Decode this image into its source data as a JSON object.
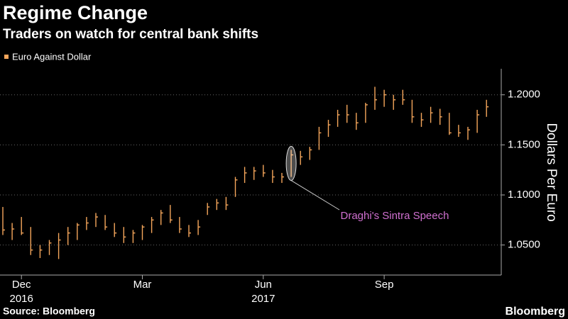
{
  "chart_data": {
    "type": "ohlc",
    "title": "Regime Change",
    "subtitle": "Traders on watch for central bank shifts",
    "legend": "Euro Against Dollar",
    "color": "#f5a65b",
    "y_axis_label": "Dollars Per Euro",
    "source": "Source: Bloomberg",
    "brand": "Bloomberg",
    "annotation": "Draghi's Sintra Speech",
    "categories": [
      null,
      null,
      "Dec",
      null,
      null,
      null,
      null,
      null,
      null,
      null,
      null,
      null,
      null,
      null,
      null,
      "Mar",
      null,
      null,
      null,
      null,
      null,
      null,
      null,
      null,
      null,
      null,
      null,
      null,
      "Jun",
      null,
      null,
      null,
      null,
      null,
      null,
      null,
      null,
      null,
      null,
      null,
      null,
      "Sep",
      null,
      null,
      null,
      null,
      null,
      null,
      null,
      null,
      null,
      null,
      null
    ],
    "category_years": [
      null,
      null,
      "2016",
      null,
      null,
      null,
      null,
      null,
      null,
      null,
      null,
      null,
      null,
      null,
      null,
      null,
      null,
      null,
      null,
      null,
      null,
      null,
      null,
      null,
      null,
      null,
      null,
      null,
      "2017",
      null,
      null,
      null,
      null,
      null,
      null,
      null,
      null,
      null,
      null,
      null,
      null,
      null,
      null,
      null,
      null,
      null,
      null,
      null,
      null,
      null,
      null,
      null,
      null
    ],
    "high": [
      1.088,
      1.072,
      1.078,
      1.068,
      1.05,
      1.055,
      1.062,
      1.068,
      1.072,
      1.078,
      1.082,
      1.08,
      1.072,
      1.068,
      1.065,
      1.07,
      1.078,
      1.085,
      1.09,
      1.078,
      1.07,
      1.075,
      1.092,
      1.096,
      1.098,
      1.118,
      1.128,
      1.128,
      1.13,
      1.125,
      1.122,
      1.145,
      1.144,
      1.148,
      1.168,
      1.175,
      1.185,
      1.19,
      1.182,
      1.192,
      1.208,
      1.205,
      1.2,
      1.205,
      1.195,
      1.182,
      1.188,
      1.186,
      1.182,
      1.17,
      1.168,
      1.185,
      1.195
    ],
    "low": [
      1.06,
      1.055,
      1.06,
      1.04,
      1.037,
      1.04,
      1.036,
      1.05,
      1.055,
      1.065,
      1.068,
      1.065,
      1.058,
      1.052,
      1.052,
      1.055,
      1.062,
      1.07,
      1.072,
      1.062,
      1.058,
      1.06,
      1.08,
      1.085,
      1.085,
      1.098,
      1.112,
      1.115,
      1.118,
      1.112,
      1.112,
      1.118,
      1.13,
      1.135,
      1.145,
      1.158,
      1.168,
      1.172,
      1.165,
      1.172,
      1.185,
      1.188,
      1.185,
      1.19,
      1.172,
      1.168,
      1.172,
      1.17,
      1.16,
      1.158,
      1.155,
      1.162,
      1.178
    ],
    "close": [
      1.065,
      1.066,
      1.062,
      1.045,
      1.045,
      1.052,
      1.055,
      1.062,
      1.07,
      1.072,
      1.078,
      1.068,
      1.062,
      1.058,
      1.062,
      1.068,
      1.075,
      1.082,
      1.075,
      1.066,
      1.062,
      1.068,
      1.088,
      1.092,
      1.09,
      1.115,
      1.122,
      1.124,
      1.122,
      1.118,
      1.118,
      1.14,
      1.138,
      1.145,
      1.162,
      1.17,
      1.18,
      1.18,
      1.172,
      1.19,
      1.195,
      1.2,
      1.195,
      1.195,
      1.178,
      1.175,
      1.182,
      1.178,
      1.162,
      1.162,
      1.165,
      1.18,
      1.188
    ],
    "ylim": [
      1.02,
      1.226
    ],
    "yticks": [
      {
        "value": 1.05,
        "label": "1.0500"
      },
      {
        "value": 1.1,
        "label": "1.1000"
      },
      {
        "value": 1.15,
        "label": "1.1500"
      },
      {
        "value": 1.2,
        "label": "1.2000"
      }
    ],
    "grid": true
  }
}
